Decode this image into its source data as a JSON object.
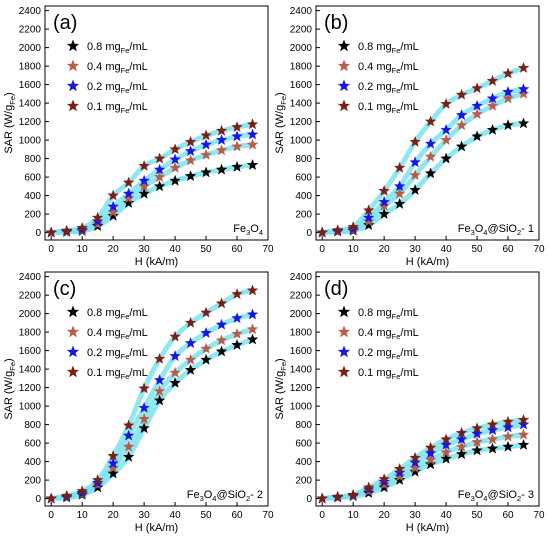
{
  "chart_data": [
    {
      "type": "scatter",
      "panel_label": "(a)",
      "sample": {
        "base": "Fe",
        "sub1": "3",
        "mid": "O",
        "sub2": "4",
        "tail": ""
      },
      "xlabel": "H (kA/m)",
      "ylabel": {
        "main": "SAR (W/g",
        "sub": "Fe",
        "end": ")"
      },
      "xlim": [
        -2,
        70
      ],
      "ylim": [
        -80,
        2450
      ],
      "x_ticks": [
        0,
        10,
        20,
        30,
        40,
        50,
        60,
        70
      ],
      "y_ticks": [
        0,
        200,
        400,
        600,
        800,
        1000,
        1200,
        1400,
        1600,
        1800,
        2000,
        2200,
        2400
      ],
      "legend_position": "top-left",
      "x": [
        0,
        5,
        10,
        15,
        20,
        25,
        30,
        35,
        40,
        45,
        50,
        55,
        60,
        65
      ],
      "series": [
        {
          "name": {
            "lead": "0.8 mg",
            "sub": "Fe",
            "tail": "/mL"
          },
          "color": "#000000",
          "values": [
            0,
            5,
            15,
            70,
            180,
            320,
            420,
            500,
            560,
            610,
            650,
            680,
            710,
            730
          ]
        },
        {
          "name": {
            "lead": "0.4 mg",
            "sub": "Fe",
            "tail": "/mL"
          },
          "color": "#b85c4a",
          "values": [
            0,
            10,
            20,
            90,
            220,
            370,
            500,
            600,
            700,
            780,
            840,
            890,
            930,
            950
          ]
        },
        {
          "name": {
            "lead": "0.2 mg",
            "sub": "Fe",
            "tail": "/mL"
          },
          "color": "#1515e6",
          "values": [
            0,
            15,
            30,
            120,
            280,
            420,
            560,
            680,
            790,
            880,
            950,
            1000,
            1040,
            1060
          ]
        },
        {
          "name": {
            "lead": "0.1 mg",
            "sub": "Fe",
            "tail": "/mL"
          },
          "color": "#7a1f14",
          "values": [
            0,
            20,
            50,
            160,
            400,
            540,
            720,
            800,
            900,
            980,
            1050,
            1100,
            1140,
            1170
          ]
        }
      ]
    },
    {
      "type": "scatter",
      "panel_label": "(b)",
      "sample": {
        "base": "Fe",
        "sub1": "3",
        "mid": "O",
        "sub2": "4",
        "tail": "@SiO",
        "sub3": "2",
        "end": "- 1"
      },
      "xlabel": "H (kA/m)",
      "ylabel": {
        "main": "SAR (W/g",
        "sub": "Fe",
        "end": ")"
      },
      "xlim": [
        -2,
        70
      ],
      "ylim": [
        -80,
        2450
      ],
      "x_ticks": [
        0,
        10,
        20,
        30,
        40,
        50,
        60,
        70
      ],
      "y_ticks": [
        0,
        200,
        400,
        600,
        800,
        1000,
        1200,
        1400,
        1600,
        1800,
        2000,
        2200,
        2400
      ],
      "legend_position": "top-left",
      "x": [
        0,
        5,
        10,
        15,
        20,
        25,
        30,
        35,
        40,
        45,
        50,
        55,
        60,
        65
      ],
      "series": [
        {
          "name": {
            "lead": "0.8 mg",
            "sub": "Fe",
            "tail": "/mL"
          },
          "color": "#000000",
          "values": [
            0,
            10,
            20,
            80,
            200,
            310,
            460,
            640,
            800,
            930,
            1040,
            1110,
            1160,
            1180
          ]
        },
        {
          "name": {
            "lead": "0.4 mg",
            "sub": "Fe",
            "tail": "/mL"
          },
          "color": "#b85c4a",
          "values": [
            0,
            15,
            30,
            120,
            290,
            420,
            620,
            820,
            1000,
            1160,
            1280,
            1370,
            1450,
            1500
          ]
        },
        {
          "name": {
            "lead": "0.2 mg",
            "sub": "Fe",
            "tail": "/mL"
          },
          "color": "#1515e6",
          "values": [
            0,
            20,
            40,
            160,
            330,
            500,
            760,
            960,
            1110,
            1270,
            1370,
            1450,
            1520,
            1550
          ]
        },
        {
          "name": {
            "lead": "0.1 mg",
            "sub": "Fe",
            "tail": "/mL"
          },
          "color": "#7a1f14",
          "values": [
            0,
            25,
            60,
            240,
            450,
            700,
            980,
            1200,
            1390,
            1490,
            1560,
            1640,
            1720,
            1780
          ]
        }
      ]
    },
    {
      "type": "scatter",
      "panel_label": "(c)",
      "sample": {
        "base": "Fe",
        "sub1": "3",
        "mid": "O",
        "sub2": "4",
        "tail": "@SiO",
        "sub3": "2",
        "end": "- 2"
      },
      "xlabel": "H (kA/m)",
      "ylabel": {
        "main": "SAR (W/g",
        "sub": "Fe",
        "end": ")"
      },
      "xlim": [
        -2,
        70
      ],
      "ylim": [
        -80,
        2450
      ],
      "x_ticks": [
        0,
        10,
        20,
        30,
        40,
        50,
        60,
        70
      ],
      "y_ticks": [
        0,
        200,
        400,
        600,
        800,
        1000,
        1200,
        1400,
        1600,
        1800,
        2000,
        2200,
        2400
      ],
      "legend_position": "top-left",
      "x": [
        0,
        5,
        10,
        15,
        20,
        25,
        30,
        35,
        40,
        45,
        50,
        55,
        60,
        65
      ],
      "series": [
        {
          "name": {
            "lead": "0.8 mg",
            "sub": "Fe",
            "tail": "/mL"
          },
          "color": "#000000",
          "values": [
            0,
            10,
            40,
            120,
            270,
            450,
            760,
            1060,
            1250,
            1390,
            1500,
            1590,
            1660,
            1720
          ]
        },
        {
          "name": {
            "lead": "0.4 mg",
            "sub": "Fe",
            "tail": "/mL"
          },
          "color": "#b85c4a",
          "values": [
            0,
            15,
            50,
            150,
            330,
            560,
            860,
            1160,
            1360,
            1500,
            1620,
            1710,
            1780,
            1830
          ]
        },
        {
          "name": {
            "lead": "0.2 mg",
            "sub": "Fe",
            "tail": "/mL"
          },
          "color": "#1515e6",
          "values": [
            0,
            20,
            60,
            170,
            380,
            680,
            980,
            1280,
            1540,
            1680,
            1790,
            1880,
            1950,
            1990
          ]
        },
        {
          "name": {
            "lead": "0.1 mg",
            "sub": "Fe",
            "tail": "/mL"
          },
          "color": "#7a1f14",
          "values": [
            0,
            30,
            80,
            200,
            460,
            790,
            1190,
            1510,
            1750,
            1900,
            2010,
            2110,
            2210,
            2250
          ]
        }
      ]
    },
    {
      "type": "scatter",
      "panel_label": "(d)",
      "sample": {
        "base": "Fe",
        "sub1": "3",
        "mid": "O",
        "sub2": "4",
        "tail": "@SiO",
        "sub3": "2",
        "end": "- 3"
      },
      "xlabel": "H (kA/m)",
      "ylabel": {
        "main": "SAR (W/g",
        "sub": "Fe",
        "end": ")"
      },
      "xlim": [
        -2,
        70
      ],
      "ylim": [
        -80,
        2450
      ],
      "x_ticks": [
        0,
        10,
        20,
        30,
        40,
        50,
        60,
        70
      ],
      "y_ticks": [
        0,
        200,
        400,
        600,
        800,
        1000,
        1200,
        1400,
        1600,
        1800,
        2000,
        2200,
        2400
      ],
      "legend_position": "top-left",
      "x": [
        0,
        5,
        10,
        15,
        20,
        25,
        30,
        35,
        40,
        45,
        50,
        55,
        60,
        65
      ],
      "series": [
        {
          "name": {
            "lead": "0.8 mg",
            "sub": "Fe",
            "tail": "/mL"
          },
          "color": "#000000",
          "values": [
            0,
            10,
            25,
            60,
            120,
            200,
            290,
            370,
            430,
            480,
            520,
            540,
            560,
            580
          ]
        },
        {
          "name": {
            "lead": "0.4 mg",
            "sub": "Fe",
            "tail": "/mL"
          },
          "color": "#b85c4a",
          "values": [
            0,
            12,
            30,
            80,
            150,
            240,
            330,
            420,
            500,
            560,
            610,
            640,
            670,
            690
          ]
        },
        {
          "name": {
            "lead": "0.2 mg",
            "sub": "Fe",
            "tail": "/mL"
          },
          "color": "#1515e6",
          "values": [
            0,
            15,
            35,
            100,
            180,
            280,
            390,
            490,
            580,
            640,
            700,
            740,
            770,
            800
          ]
        },
        {
          "name": {
            "lead": "0.1 mg",
            "sub": "Fe",
            "tail": "/mL"
          },
          "color": "#7a1f14",
          "values": [
            0,
            20,
            40,
            120,
            210,
            320,
            440,
            550,
            640,
            710,
            760,
            800,
            830,
            850
          ]
        }
      ]
    }
  ]
}
